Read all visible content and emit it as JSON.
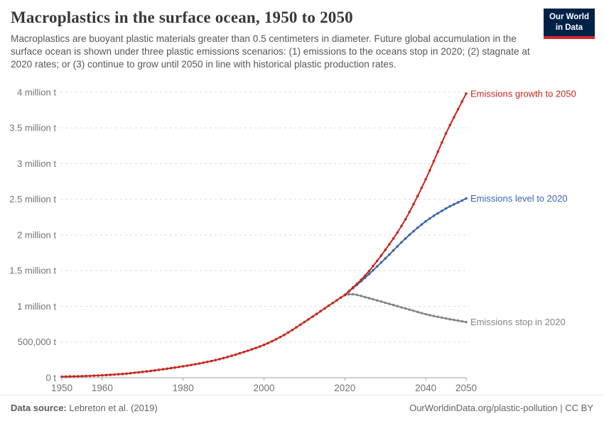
{
  "header": {
    "title": "Macroplastics in the surface ocean, 1950 to 2050",
    "subtitle": "Macroplastics are buoyant plastic materials greater than 0.5 centimeters in diameter. Future global accumulation in the surface ocean is shown under three plastic emissions scenarios: (1) emissions to the oceans stop in 2020; (2) stagnate at 2020 rates; or (3) continue to grow until 2050 in line with historical plastic production rates.",
    "logo": {
      "line1": "Our World",
      "line2": "in Data"
    }
  },
  "footer": {
    "source_label": "Data source:",
    "source_value": " Lebreton et al. (2019)",
    "attribution": "OurWorldinData.org/plastic-pollution | CC BY"
  },
  "chart_data": {
    "type": "line",
    "title": "Macroplastics in the surface ocean, 1950 to 2050",
    "unit": "tonnes",
    "grid": true,
    "legend_position": "line-end-labels",
    "x_range": [
      1950,
      2050
    ],
    "y_range": [
      0,
      4000000
    ],
    "x_ticks": [
      1950,
      1960,
      1980,
      2000,
      2020,
      2040,
      2050
    ],
    "y_ticks": [
      {
        "value": 0,
        "label": "0 t"
      },
      {
        "value": 500000,
        "label": "500,000 t"
      },
      {
        "value": 1000000,
        "label": "1 million t"
      },
      {
        "value": 1500000,
        "label": "1.5 million t"
      },
      {
        "value": 2000000,
        "label": "2 million t"
      },
      {
        "value": 2500000,
        "label": "2.5 million t"
      },
      {
        "value": 3000000,
        "label": "3 million t"
      },
      {
        "value": 3500000,
        "label": "3.5 million t"
      },
      {
        "value": 4000000,
        "label": "4 million t"
      }
    ],
    "series": [
      {
        "name": "historical-accumulation",
        "label": "",
        "color": "#c5271f",
        "years": [
          1950,
          1955,
          1960,
          1965,
          1970,
          1975,
          1980,
          1985,
          1990,
          1995,
          2000,
          2005,
          2010,
          2015,
          2020
        ],
        "values": [
          15000,
          22000,
          34000,
          53000,
          82000,
          118000,
          160000,
          210000,
          275000,
          360000,
          460000,
          600000,
          780000,
          970000,
          1160000
        ]
      },
      {
        "name": "emissions-stop-2020",
        "label": "Emissions stop in 2020",
        "color": "#858585",
        "years": [
          2020,
          2022,
          2025,
          2030,
          2035,
          2040,
          2045,
          2050
        ],
        "values": [
          1160000,
          1170000,
          1130000,
          1050000,
          970000,
          890000,
          830000,
          780000
        ]
      },
      {
        "name": "emissions-level-2020",
        "label": "Emissions level to 2020",
        "color": "#3a67ad",
        "years": [
          2020,
          2025,
          2030,
          2035,
          2040,
          2045,
          2050
        ],
        "values": [
          1160000,
          1400000,
          1670000,
          1950000,
          2190000,
          2370000,
          2510000
        ]
      },
      {
        "name": "emissions-growth-2050",
        "label": "Emissions growth to 2050",
        "color": "#c5271f",
        "years": [
          2020,
          2025,
          2030,
          2035,
          2040,
          2045,
          2050
        ],
        "values": [
          1160000,
          1430000,
          1790000,
          2220000,
          2780000,
          3420000,
          3980000
        ]
      }
    ]
  }
}
